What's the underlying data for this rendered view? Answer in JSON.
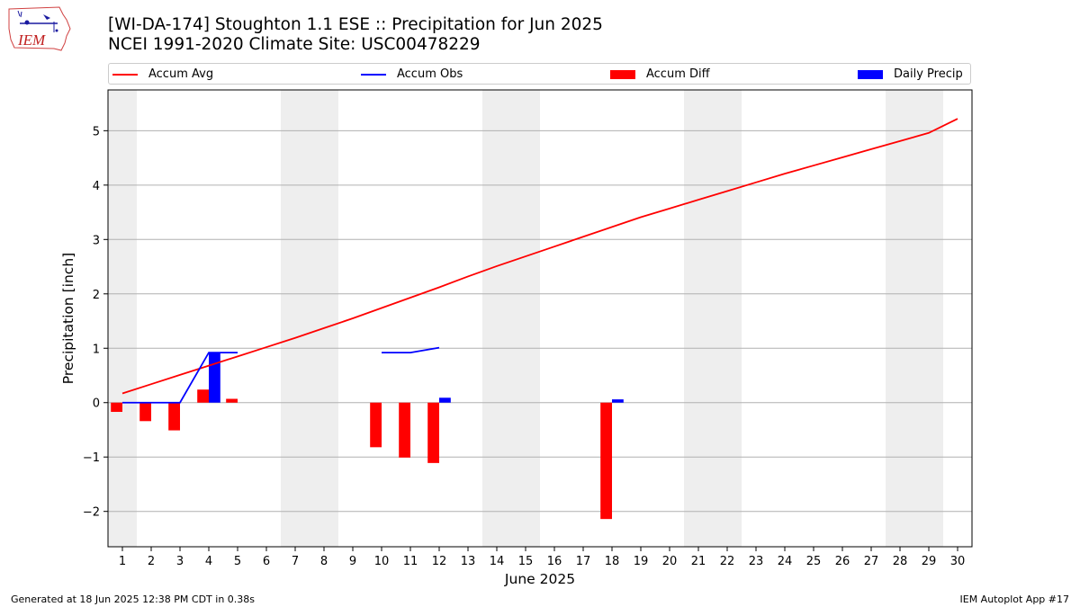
{
  "header": {
    "logo_text": "IEM",
    "title_line1": "[WI-DA-174] Stoughton 1.1 ESE :: Precipitation for Jun 2025",
    "title_line2": "NCEI 1991-2020 Climate Site: USC00478229"
  },
  "legend": {
    "accum_avg": "Accum Avg",
    "accum_obs": "Accum Obs",
    "accum_diff": "Accum Diff",
    "daily_precip": "Daily Precip"
  },
  "colors": {
    "accum_avg": "#ff0000",
    "accum_obs": "#0000ff",
    "accum_diff": "#ff0000",
    "daily_precip": "#0000ff",
    "weekend_band": "#eeeeee",
    "grid": "#b0b0b0"
  },
  "chart_data": {
    "type": "bar",
    "xlabel": "June 2025",
    "ylabel": "Precipitation [inch]",
    "x": [
      1,
      2,
      3,
      4,
      5,
      6,
      7,
      8,
      9,
      10,
      11,
      12,
      13,
      14,
      15,
      16,
      17,
      18,
      19,
      20,
      21,
      22,
      23,
      24,
      25,
      26,
      27,
      28,
      29,
      30
    ],
    "xlim": [
      0.5,
      30.5
    ],
    "ylim": [
      -2.65,
      5.75
    ],
    "yticks": [
      -2,
      -1,
      0,
      1,
      2,
      3,
      4,
      5
    ],
    "ytick_labels": [
      "−2",
      "−1",
      "0",
      "1",
      "2",
      "3",
      "4",
      "5"
    ],
    "grid": "horizontal",
    "legend_position": "top",
    "weekend_bands": [
      [
        0.5,
        1.5
      ],
      [
        6.5,
        8.5
      ],
      [
        13.5,
        15.5
      ],
      [
        20.5,
        22.5
      ],
      [
        27.5,
        29.5
      ]
    ],
    "series": [
      {
        "name": "Accum Avg",
        "type": "line",
        "x": [
          1,
          2,
          3,
          4,
          5,
          6,
          7,
          8,
          9,
          10,
          11,
          12,
          13,
          14,
          15,
          16,
          17,
          18,
          19,
          20,
          21,
          22,
          23,
          24,
          25,
          26,
          27,
          28,
          29,
          30
        ],
        "values": [
          0.17,
          0.34,
          0.51,
          0.68,
          0.85,
          1.02,
          1.19,
          1.37,
          1.55,
          1.74,
          1.93,
          2.12,
          2.32,
          2.51,
          2.69,
          2.87,
          3.05,
          3.23,
          3.41,
          3.57,
          3.73,
          3.89,
          4.05,
          4.21,
          4.36,
          4.51,
          4.66,
          4.81,
          4.96,
          5.22
        ]
      },
      {
        "name": "Accum Obs",
        "type": "line",
        "segments": [
          {
            "x": [
              1,
              2,
              3,
              4,
              5
            ],
            "values": [
              0.0,
              0.0,
              0.0,
              0.92,
              0.92
            ]
          },
          {
            "x": [
              10,
              11,
              12
            ],
            "values": [
              0.92,
              0.92,
              1.01
            ]
          }
        ]
      },
      {
        "name": "Accum Diff",
        "type": "bar",
        "x": [
          1,
          2,
          3,
          4,
          5,
          10,
          11,
          12,
          18
        ],
        "values": [
          -0.17,
          -0.34,
          -0.51,
          0.24,
          0.07,
          -0.82,
          -1.01,
          -1.11,
          -2.14
        ]
      },
      {
        "name": "Daily Precip",
        "type": "bar",
        "x": [
          4,
          12,
          18
        ],
        "values": [
          0.92,
          0.09,
          0.06
        ]
      }
    ]
  },
  "footer": {
    "generated": "Generated at 18 Jun 2025 12:38 PM CDT in 0.38s",
    "app": "IEM Autoplot App #17"
  }
}
